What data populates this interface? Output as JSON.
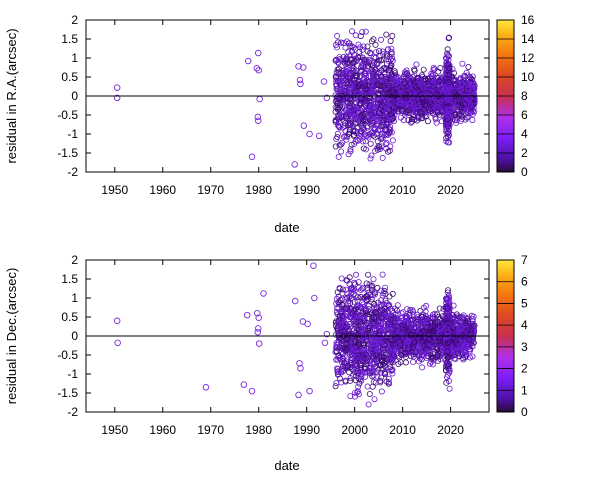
{
  "chart_data": [
    {
      "type": "scatter",
      "ylabel": "residual in R.A.(arcsec)",
      "xlabel": "date",
      "xlim": [
        1944,
        2028
      ],
      "ylim": [
        -2,
        2
      ],
      "x_ticks": [
        1950,
        1960,
        1970,
        1980,
        1990,
        2000,
        2010,
        2020
      ],
      "y_ticks": [
        -2,
        -1.5,
        -1,
        -0.5,
        0,
        0.5,
        1,
        1.5,
        2
      ],
      "zero_line": true,
      "grid": false,
      "colorbar": {
        "min": 0,
        "max": 16,
        "ticks": [
          0,
          2,
          4,
          6,
          8,
          10,
          12,
          14,
          16
        ]
      },
      "points": [
        [
          1950.5,
          0.22
        ],
        [
          1950.5,
          -0.05
        ],
        [
          1977.8,
          0.92
        ],
        [
          1978.6,
          -1.6
        ],
        [
          1979.9,
          1.13
        ],
        [
          1979.6,
          0.73
        ],
        [
          1980.0,
          0.68
        ],
        [
          1980.2,
          -0.08
        ],
        [
          1979.8,
          -0.55
        ],
        [
          1979.9,
          -0.65
        ],
        [
          1987.5,
          -1.8
        ],
        [
          1988.3,
          0.78
        ],
        [
          1988.6,
          0.42
        ],
        [
          1988.7,
          0.32
        ],
        [
          1989.3,
          0.75
        ],
        [
          1989.4,
          -0.78
        ],
        [
          1990.6,
          -1.0
        ],
        [
          1992.6,
          -1.05
        ],
        [
          1993.6,
          0.38
        ],
        [
          1994.2,
          -0.05
        ]
      ],
      "dense_regions": [
        {
          "from": 1996,
          "to": 2008,
          "spread": 1.95,
          "count": 900
        },
        {
          "from": 2008,
          "to": 2025,
          "spread": 0.9,
          "count": 1100
        },
        {
          "from": 2015.5,
          "to": 2016.5,
          "spread": 0.4,
          "count": 150
        },
        {
          "from": 2019.0,
          "to": 2019.8,
          "spread": 1.75,
          "count": 220
        }
      ]
    },
    {
      "type": "scatter",
      "ylabel": "residual in Dec.(arcsec)",
      "xlabel": "date",
      "xlim": [
        1944,
        2028
      ],
      "ylim": [
        -2,
        2
      ],
      "x_ticks": [
        1950,
        1960,
        1970,
        1980,
        1990,
        2000,
        2010,
        2020
      ],
      "y_ticks": [
        -2,
        -1.5,
        -1,
        -0.5,
        0,
        0.5,
        1,
        1.5,
        2
      ],
      "zero_line": true,
      "grid": false,
      "colorbar": {
        "min": 0,
        "max": 7,
        "ticks": [
          0,
          1,
          2,
          3,
          4,
          5,
          6,
          7
        ]
      },
      "points": [
        [
          1950.5,
          0.4
        ],
        [
          1950.6,
          -0.18
        ],
        [
          1969.0,
          -1.35
        ],
        [
          1976.9,
          -1.28
        ],
        [
          1977.6,
          0.55
        ],
        [
          1978.6,
          -1.45
        ],
        [
          1979.7,
          0.6
        ],
        [
          1980.0,
          0.48
        ],
        [
          1979.9,
          0.2
        ],
        [
          1979.8,
          0.1
        ],
        [
          1980.1,
          -0.2
        ],
        [
          1981.0,
          1.12
        ],
        [
          1987.6,
          0.92
        ],
        [
          1988.3,
          -1.55
        ],
        [
          1988.5,
          -0.72
        ],
        [
          1988.7,
          -0.85
        ],
        [
          1989.2,
          0.38
        ],
        [
          1990.2,
          0.32
        ],
        [
          1990.6,
          -1.45
        ],
        [
          1991.4,
          1.85
        ],
        [
          1991.6,
          1.0
        ],
        [
          1993.8,
          -0.18
        ],
        [
          1994.2,
          0.05
        ]
      ],
      "dense_regions": [
        {
          "from": 1996,
          "to": 2008,
          "spread": 1.95,
          "count": 900
        },
        {
          "from": 2008,
          "to": 2025,
          "spread": 0.9,
          "count": 1100
        },
        {
          "from": 2015.5,
          "to": 2016.5,
          "spread": 0.4,
          "count": 150
        },
        {
          "from": 2019.0,
          "to": 2019.8,
          "spread": 1.6,
          "count": 220
        }
      ]
    }
  ]
}
